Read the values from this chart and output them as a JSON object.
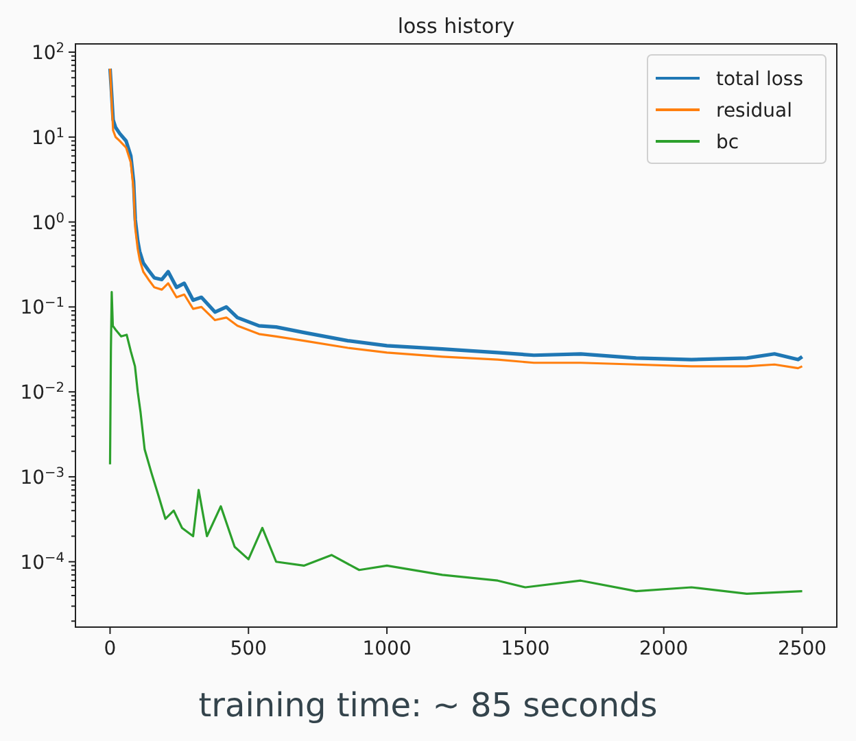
{
  "chart_data": {
    "type": "line",
    "title": "loss history",
    "log": "y",
    "legend": "top right",
    "grid": false,
    "annotations": [
      "training time: ∼ 85 seconds"
    ],
    "xlim": [
      -125,
      2625
    ],
    "xticks": [
      0,
      500,
      1000,
      1500,
      2000,
      2500
    ],
    "ylim": [
      1.7e-05,
      125
    ],
    "yticks": [
      {
        "value": 0.0001,
        "label": "10$^{−4}$"
      },
      {
        "value": 0.001,
        "label": "10$^{−3}$"
      },
      {
        "value": 0.01,
        "label": "10$^{−2}$"
      },
      {
        "value": 0.1,
        "label": "10$^{−1}$"
      },
      {
        "value": 1,
        "label": "10$^{0}$"
      },
      {
        "value": 10,
        "label": "10$^{1}$"
      },
      {
        "value": 100,
        "label": "10$^{2}$"
      },
      {
        "value": 2e-05,
        "label": null
      },
      {
        "value": 3e-05,
        "label": null
      },
      {
        "value": 4e-05,
        "label": null
      },
      {
        "value": 5e-05,
        "label": null
      },
      {
        "value": 6e-05,
        "label": null
      },
      {
        "value": 7e-05,
        "label": null
      },
      {
        "value": 8e-05,
        "label": null
      },
      {
        "value": 9e-05,
        "label": null
      },
      {
        "value": 0.0002,
        "label": null
      },
      {
        "value": 0.0003,
        "label": null
      },
      {
        "value": 0.0004,
        "label": null
      },
      {
        "value": 0.0005,
        "label": null
      },
      {
        "value": 0.0006,
        "label": null
      },
      {
        "value": 0.0007,
        "label": null
      },
      {
        "value": 0.0008,
        "label": null
      },
      {
        "value": 0.0009,
        "label": null
      },
      {
        "value": 0.002,
        "label": null
      },
      {
        "value": 0.003,
        "label": null
      },
      {
        "value": 0.004,
        "label": null
      },
      {
        "value": 0.005,
        "label": null
      },
      {
        "value": 0.006,
        "label": null
      },
      {
        "value": 0.007,
        "label": null
      },
      {
        "value": 0.008,
        "label": null
      },
      {
        "value": 0.009,
        "label": null
      },
      {
        "value": 0.02,
        "label": null
      },
      {
        "value": 0.03,
        "label": null
      },
      {
        "value": 0.04,
        "label": null
      },
      {
        "value": 0.05,
        "label": null
      },
      {
        "value": 0.06,
        "label": null
      },
      {
        "value": 0.07,
        "label": null
      },
      {
        "value": 0.08,
        "label": null
      },
      {
        "value": 0.09,
        "label": null
      },
      {
        "value": 0.2,
        "label": null
      },
      {
        "value": 0.3,
        "label": null
      },
      {
        "value": 0.4,
        "label": null
      },
      {
        "value": 0.5,
        "label": null
      },
      {
        "value": 0.6,
        "label": null
      },
      {
        "value": 0.7,
        "label": null
      },
      {
        "value": 0.8,
        "label": null
      },
      {
        "value": 0.9,
        "label": null
      },
      {
        "value": 2,
        "label": null
      },
      {
        "value": 3,
        "label": null
      },
      {
        "value": 4,
        "label": null
      },
      {
        "value": 5,
        "label": null
      },
      {
        "value": 6,
        "label": null
      },
      {
        "value": 7,
        "label": null
      },
      {
        "value": 8,
        "label": null
      },
      {
        "value": 9,
        "label": null
      },
      {
        "value": 20,
        "label": null
      },
      {
        "value": 30,
        "label": null
      },
      {
        "value": 40,
        "label": null
      },
      {
        "value": 50,
        "label": null
      },
      {
        "value": 60,
        "label": null
      },
      {
        "value": 70,
        "label": null
      },
      {
        "value": 80,
        "label": null
      },
      {
        "value": 90,
        "label": null
      }
    ],
    "series": [
      {
        "name": "total loss",
        "color": "#1f77b4",
        "x": [
          0,
          5,
          11,
          20,
          35,
          58,
          75,
          85,
          91,
          100,
          107,
          120,
          139,
          160,
          187,
          210,
          240,
          268,
          300,
          330,
          379,
          420,
          460,
          538,
          600,
          700,
          859,
          1000,
          1200,
          1400,
          1531,
          1700,
          1900,
          2100,
          2300,
          2400,
          2485,
          2500
        ],
        "values": [
          64,
          35,
          16,
          13,
          11,
          9,
          6,
          3,
          1.07,
          0.6,
          0.45,
          0.33,
          0.27,
          0.22,
          0.21,
          0.26,
          0.17,
          0.19,
          0.12,
          0.13,
          0.087,
          0.1,
          0.075,
          0.06,
          0.058,
          0.05,
          0.04,
          0.035,
          0.032,
          0.029,
          0.027,
          0.028,
          0.025,
          0.024,
          0.025,
          0.028,
          0.024,
          0.026
        ]
      },
      {
        "name": "residual",
        "color": "#ff7f0e",
        "x": [
          0,
          5,
          11,
          20,
          35,
          58,
          75,
          85,
          91,
          100,
          107,
          120,
          139,
          160,
          187,
          210,
          240,
          268,
          300,
          330,
          379,
          420,
          460,
          538,
          600,
          700,
          859,
          1000,
          1200,
          1400,
          1531,
          1700,
          1900,
          2100,
          2300,
          2400,
          2485,
          2500
        ],
        "values": [
          64,
          30,
          12,
          10,
          9,
          7.5,
          5,
          2.4,
          0.85,
          0.48,
          0.36,
          0.26,
          0.21,
          0.17,
          0.16,
          0.19,
          0.13,
          0.14,
          0.095,
          0.1,
          0.07,
          0.075,
          0.06,
          0.048,
          0.045,
          0.04,
          0.033,
          0.029,
          0.026,
          0.024,
          0.022,
          0.022,
          0.021,
          0.02,
          0.02,
          0.021,
          0.019,
          0.02
        ]
      },
      {
        "name": "bc",
        "color": "#2ca02c",
        "x": [
          0,
          3,
          6,
          10,
          20,
          40,
          60,
          75,
          90,
          100,
          110,
          125,
          150,
          175,
          200,
          230,
          260,
          300,
          320,
          350,
          400,
          450,
          500,
          550,
          600,
          700,
          800,
          900,
          1000,
          1200,
          1400,
          1500,
          1700,
          1900,
          2100,
          2300,
          2500
        ],
        "values": [
          0.0014,
          0.03,
          0.15,
          0.06,
          0.054,
          0.045,
          0.047,
          0.03,
          0.02,
          0.01,
          0.0058,
          0.0021,
          0.0011,
          0.0006,
          0.00032,
          0.0004,
          0.00025,
          0.0002,
          0.0007,
          0.0002,
          0.00045,
          0.00015,
          0.000107,
          0.00025,
          0.0001,
          9e-05,
          0.00012,
          8e-05,
          9e-05,
          7e-05,
          6e-05,
          5e-05,
          6e-05,
          4.5e-05,
          5e-05,
          4.2e-05,
          4.5e-05
        ]
      }
    ]
  }
}
